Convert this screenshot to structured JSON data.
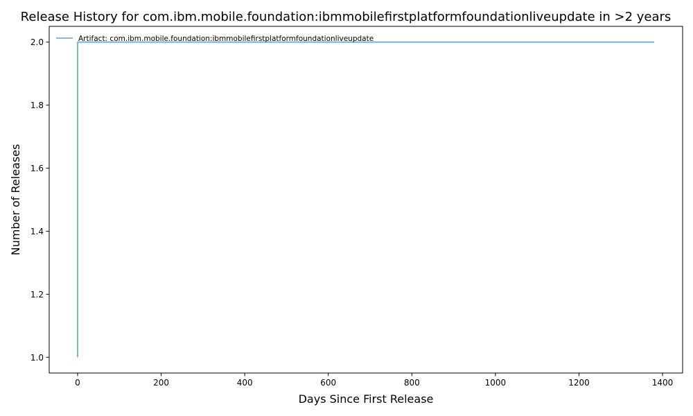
{
  "chart_data": {
    "type": "line",
    "title": "Release History for com.ibm.mobile.foundation:ibmmobilefirstplatformfoundationliveupdate in >2 years",
    "xlabel": "Days Since First Release",
    "ylabel": "Number of Releases",
    "xlim": [
      -68,
      1448
    ],
    "ylim": [
      0.95,
      2.05
    ],
    "xticks": [
      0,
      200,
      400,
      600,
      800,
      1000,
      1200,
      1400
    ],
    "xtick_labels": [
      "0",
      "200",
      "400",
      "600",
      "800",
      "1000",
      "1200",
      "1400"
    ],
    "yticks": [
      1.0,
      1.2,
      1.4,
      1.6,
      1.8,
      2.0
    ],
    "ytick_labels": [
      "1.0",
      "1.2",
      "1.4",
      "1.6",
      "1.8",
      "2.0"
    ],
    "grid": false,
    "legend_position": "top-left",
    "series": [
      {
        "name": "Artifact: com.ibm.mobile.foundation:ibmmobilefirstplatformfoundationliveupdate",
        "color": "#5ba3d6",
        "step": "post",
        "x": [
          0,
          0,
          1380
        ],
        "y": [
          1,
          2,
          2
        ]
      }
    ]
  }
}
